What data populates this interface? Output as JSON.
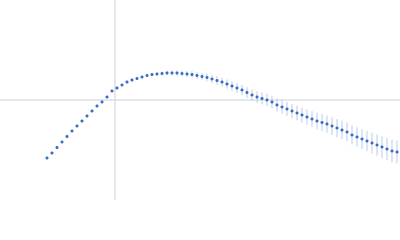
{
  "chart_data": {
    "type": "scatter",
    "xlim": [
      -115,
      285
    ],
    "ylim": [
      -100,
      100
    ],
    "color": "#3a6bc4",
    "error_color": "#a9bfe6",
    "zero_line_color": "#c8d0dc",
    "x": [
      -68,
      -63,
      -58,
      -53,
      -48,
      -43,
      -38,
      -33,
      -28,
      -23,
      -18,
      -13,
      -8,
      -3,
      2,
      7,
      12,
      17,
      22,
      27,
      32,
      37,
      42,
      47,
      52,
      57,
      62,
      67,
      72,
      77,
      82,
      87,
      92,
      97,
      102,
      107,
      112,
      117,
      122,
      127,
      132,
      137,
      142,
      147,
      152,
      157,
      162,
      167,
      172,
      177,
      182,
      187,
      192,
      197,
      202,
      207,
      212,
      217,
      222,
      227,
      232,
      237,
      242,
      247,
      252,
      257,
      262,
      267,
      272,
      277,
      282
    ],
    "values": [
      -58,
      -53,
      -47.5,
      -42,
      -36.5,
      -31,
      -26,
      -21,
      -16,
      -11,
      -6,
      -2,
      3,
      9,
      12,
      15,
      18,
      20,
      21.5,
      23,
      24.5,
      25.5,
      26,
      26.5,
      27,
      27,
      27,
      26.5,
      26,
      25.5,
      24.5,
      23.5,
      22.5,
      21,
      19.5,
      18,
      16,
      14,
      12,
      10,
      7.5,
      5,
      3,
      1.5,
      0,
      -2,
      -5,
      -7,
      -9,
      -11,
      -13,
      -15,
      -17,
      -19,
      -21,
      -22.5,
      -24,
      -26,
      -28,
      -30,
      -32,
      -35,
      -37,
      -39,
      -41,
      -43,
      -45,
      -47,
      -49,
      -51,
      -52
    ],
    "errors": [
      0.6,
      0.6,
      0.6,
      0.6,
      0.6,
      0.6,
      0.6,
      0.7,
      0.7,
      0.7,
      0.8,
      0.8,
      0.8,
      0.9,
      1,
      1,
      1.1,
      1.2,
      1.3,
      1.4,
      1.5,
      1.6,
      1.8,
      2,
      2.2,
      2.4,
      2.6,
      2.8,
      3,
      3.2,
      3.4,
      3.6,
      3.8,
      4,
      4.2,
      4.4,
      4.6,
      4.8,
      5,
      5.2,
      5.4,
      5.6,
      5.8,
      6,
      6.2,
      6.4,
      6.6,
      6.8,
      7,
      7.2,
      7.4,
      7.6,
      7.8,
      8,
      8.2,
      8.4,
      8.6,
      8.8,
      9,
      9.2,
      9.4,
      9.6,
      9.8,
      10,
      10.2,
      10.4,
      10.6,
      10.8,
      11,
      11.2,
      11.4
    ]
  }
}
